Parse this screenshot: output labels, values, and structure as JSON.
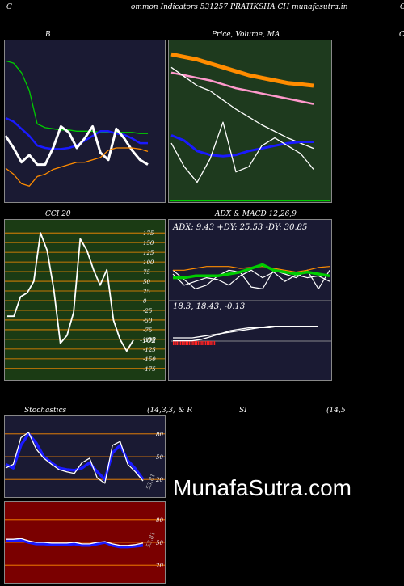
{
  "header": {
    "left": "C",
    "center": "ommon  Indicators 531257 PRATIKSHA CH munafasutra.in",
    "right": "C"
  },
  "watermark": "MunafaSutra.com",
  "colors": {
    "background": "#000000",
    "panel_navy": "#1a1a33",
    "panel_green": "#1e3a1e",
    "panel_dark_green": "#1b3b14",
    "panel_red": "#7a0000",
    "orange": "#ff8c00",
    "blue": "#1a1aff",
    "green": "#00cc00",
    "white": "#ffffff",
    "pink": "#ff99cc"
  },
  "chart_data": [
    {
      "id": "bollinger",
      "type": "line",
      "title": "B",
      "series": [
        {
          "color": "#00cc00",
          "values": [
            95,
            93,
            85,
            70,
            42,
            39,
            38,
            37,
            37,
            36,
            36,
            36,
            35,
            35,
            35,
            35,
            35,
            34,
            34
          ]
        },
        {
          "color": "#1a1aff",
          "values": [
            47,
            44,
            38,
            32,
            24,
            22,
            21,
            21,
            22,
            24,
            28,
            32,
            36,
            36,
            34,
            33,
            30,
            26,
            26
          ]
        },
        {
          "color": "#ffffff",
          "values": [
            32,
            22,
            10,
            16,
            8,
            8,
            22,
            40,
            35,
            22,
            30,
            40,
            18,
            12,
            38,
            30,
            20,
            12,
            8
          ]
        },
        {
          "color": "#ff8c00",
          "values": [
            5,
            0,
            -8,
            -10,
            -2,
            0,
            4,
            6,
            8,
            10,
            10,
            12,
            14,
            20,
            22,
            22,
            22,
            21,
            19
          ]
        }
      ],
      "ylim": [
        -20,
        110
      ]
    },
    {
      "id": "price_ma",
      "type": "line",
      "title": "Price,  Volume,  MA",
      "series": [
        {
          "color": "#ff8c00",
          "values": [
            240,
            238,
            236,
            233,
            230,
            227,
            224,
            222,
            220,
            218,
            217,
            216
          ]
        },
        {
          "color": "#ff99cc",
          "values": [
            226,
            224,
            222,
            220,
            217,
            214,
            212,
            210,
            208,
            206,
            204,
            202
          ]
        },
        {
          "color": "#ffffff",
          "values": [
            230,
            223,
            216,
            212,
            205,
            198,
            192,
            186,
            181,
            176,
            172,
            168
          ]
        },
        {
          "color": "#1a1aff",
          "values": [
            178,
            174,
            166,
            163,
            162,
            163,
            166,
            168,
            170,
            172,
            173,
            173
          ]
        },
        {
          "color": "#ffffff",
          "values": [
            172,
            154,
            142,
            160,
            188,
            150,
            154,
            170,
            176,
            170,
            164,
            152
          ]
        }
      ],
      "ylim": [
        130,
        250
      ]
    },
    {
      "id": "cci",
      "type": "line",
      "title": "CCI 20",
      "y_ticks": [
        175,
        150,
        125,
        100,
        75,
        50,
        25,
        0,
        -25,
        -50,
        -75,
        -100,
        -125,
        -150,
        -175
      ],
      "last_value_label": "-102",
      "series": [
        {
          "color": "#ffffff",
          "values": [
            -40,
            -40,
            10,
            20,
            50,
            175,
            130,
            30,
            -110,
            -90,
            -30,
            160,
            130,
            80,
            40,
            80,
            -50,
            -100,
            -130,
            -102
          ]
        }
      ],
      "ylim": [
        -190,
        190
      ]
    },
    {
      "id": "adx",
      "type": "line",
      "title": "ADX  & MACD 12,26,9",
      "readout": "ADX: 9.43 +DY: 25.53 -DY: 30.85",
      "series": [
        {
          "color": "#ffffff",
          "values": [
            26,
            14,
            18,
            22,
            20,
            14,
            24,
            30,
            22,
            28,
            18,
            25,
            22,
            24,
            18
          ]
        },
        {
          "color": "#ffffff",
          "values": [
            30,
            20,
            10,
            14,
            24,
            30,
            28,
            12,
            10,
            30,
            26,
            22,
            30,
            10,
            30
          ]
        },
        {
          "color": "#ff8c00",
          "values": [
            30,
            30,
            32,
            34,
            34,
            34,
            32,
            33,
            34,
            32,
            30,
            28,
            30,
            33,
            34
          ]
        },
        {
          "color": "#00cc00",
          "values": [
            22,
            22,
            24,
            24,
            24,
            26,
            28,
            32,
            36,
            30,
            28,
            26,
            28,
            26,
            24
          ]
        }
      ],
      "ylim": [
        0,
        45
      ]
    },
    {
      "id": "macd",
      "type": "line",
      "readout": "18.3,  18.43,  -0.13",
      "series": [
        {
          "color": "#ffffff",
          "values": [
            8,
            8,
            8,
            9,
            11,
            13,
            15,
            16,
            17,
            17,
            18,
            18,
            18,
            18,
            18,
            18
          ]
        },
        {
          "color": "#ffffff",
          "values": [
            10,
            10,
            10,
            11,
            12,
            13,
            14,
            15,
            16,
            17,
            17,
            18,
            18,
            18,
            18,
            18
          ]
        }
      ],
      "ylim": [
        0,
        25
      ]
    },
    {
      "id": "stochastics",
      "type": "line",
      "title": "Stochastics",
      "subtitle": "(14,3,3) & R",
      "y_ticks": [
        80,
        50,
        20
      ],
      "last_value_label": "53.81",
      "series": [
        {
          "color": "#1a1aff",
          "values": [
            40,
            35,
            65,
            80,
            68,
            50,
            42,
            35,
            33,
            32,
            35,
            42,
            30,
            20,
            55,
            65,
            45,
            34,
            20
          ]
        },
        {
          "color": "#ffffff",
          "values": [
            35,
            40,
            75,
            82,
            60,
            48,
            40,
            33,
            30,
            28,
            42,
            48,
            22,
            15,
            65,
            70,
            40,
            30,
            18
          ]
        }
      ],
      "ylim": [
        0,
        100
      ]
    },
    {
      "id": "rsi",
      "type": "line",
      "title": "SI",
      "subtitle": "(14,5",
      "y_ticks": [
        80,
        50,
        20
      ],
      "last_value_label": "53.81",
      "series": [
        {
          "color": "#1a1aff",
          "values": [
            53,
            52,
            53,
            50,
            48,
            48,
            47,
            47,
            47,
            48,
            46,
            46,
            48,
            50,
            46,
            44,
            44,
            45,
            46
          ]
        },
        {
          "color": "#ffffff",
          "values": [
            54,
            54,
            55,
            52,
            50,
            50,
            49,
            49,
            49,
            50,
            48,
            48,
            50,
            51,
            48,
            46,
            46,
            47,
            49
          ]
        }
      ],
      "ylim": [
        0,
        100
      ]
    }
  ]
}
